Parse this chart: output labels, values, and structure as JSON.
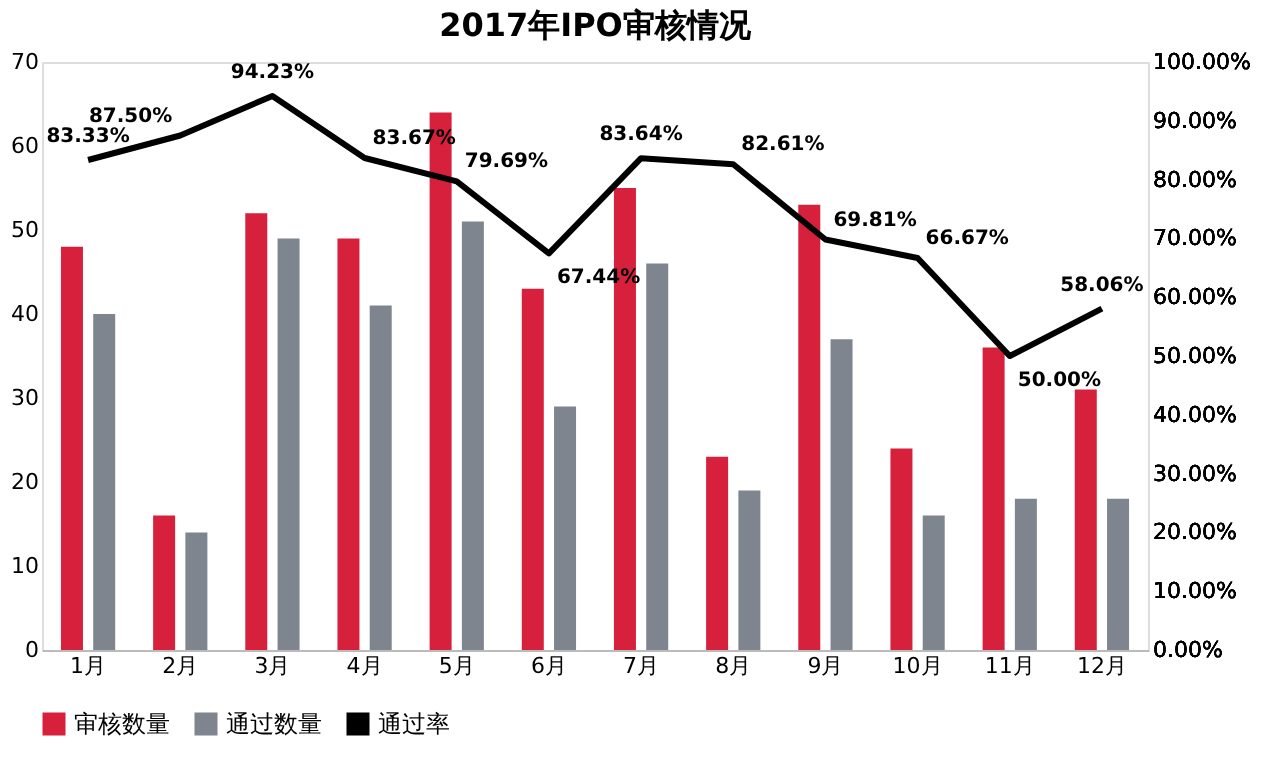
{
  "chart_data": {
    "type": "bar",
    "title": "2017年IPO审核情况",
    "categories": [
      "1月",
      "2月",
      "3月",
      "4月",
      "5月",
      "6月",
      "7月",
      "8月",
      "9月",
      "10月",
      "11月",
      "12月"
    ],
    "series": [
      {
        "name": "审核数量",
        "color": "#d7213c",
        "values": [
          48,
          16,
          52,
          49,
          64,
          43,
          55,
          23,
          53,
          24,
          36,
          31
        ]
      },
      {
        "name": "通过数量",
        "color": "#7f858f",
        "values": [
          40,
          14,
          49,
          41,
          51,
          29,
          46,
          19,
          37,
          16,
          18,
          18
        ]
      },
      {
        "name": "通过率",
        "type": "line",
        "axis": "y2",
        "color": "#000000",
        "values": [
          83.33,
          87.5,
          94.23,
          83.67,
          79.69,
          67.44,
          83.64,
          82.61,
          69.81,
          66.67,
          50.0,
          58.06
        ],
        "value_labels": [
          "83.33%",
          "87.50%",
          "94.23%",
          "83.67%",
          "79.69%",
          "67.44%",
          "83.64%",
          "82.61%",
          "69.81%",
          "66.67%",
          "50.00%",
          "58.06%"
        ]
      }
    ],
    "ylim": [
      0,
      70
    ],
    "yticks": [
      0,
      10,
      20,
      30,
      40,
      50,
      60,
      70
    ],
    "y2lim": [
      0,
      100
    ],
    "y2ticks": [
      {
        "value": 0,
        "label": "0.00%"
      },
      {
        "value": 10,
        "label": "10.00%"
      },
      {
        "value": 20,
        "label": "20.00%"
      },
      {
        "value": 30,
        "label": "30.00%"
      },
      {
        "value": 40,
        "label": "40.00%"
      },
      {
        "value": 50,
        "label": "50.00%"
      },
      {
        "value": 60,
        "label": "60.00%"
      },
      {
        "value": 70,
        "label": "70.00%"
      },
      {
        "value": 80,
        "label": "80.00%"
      },
      {
        "value": 90,
        "label": "90.00%"
      },
      {
        "value": 100,
        "label": "100.00%"
      }
    ],
    "grid": false,
    "legend": "bottom",
    "marker": "none",
    "line_style": "solid"
  }
}
